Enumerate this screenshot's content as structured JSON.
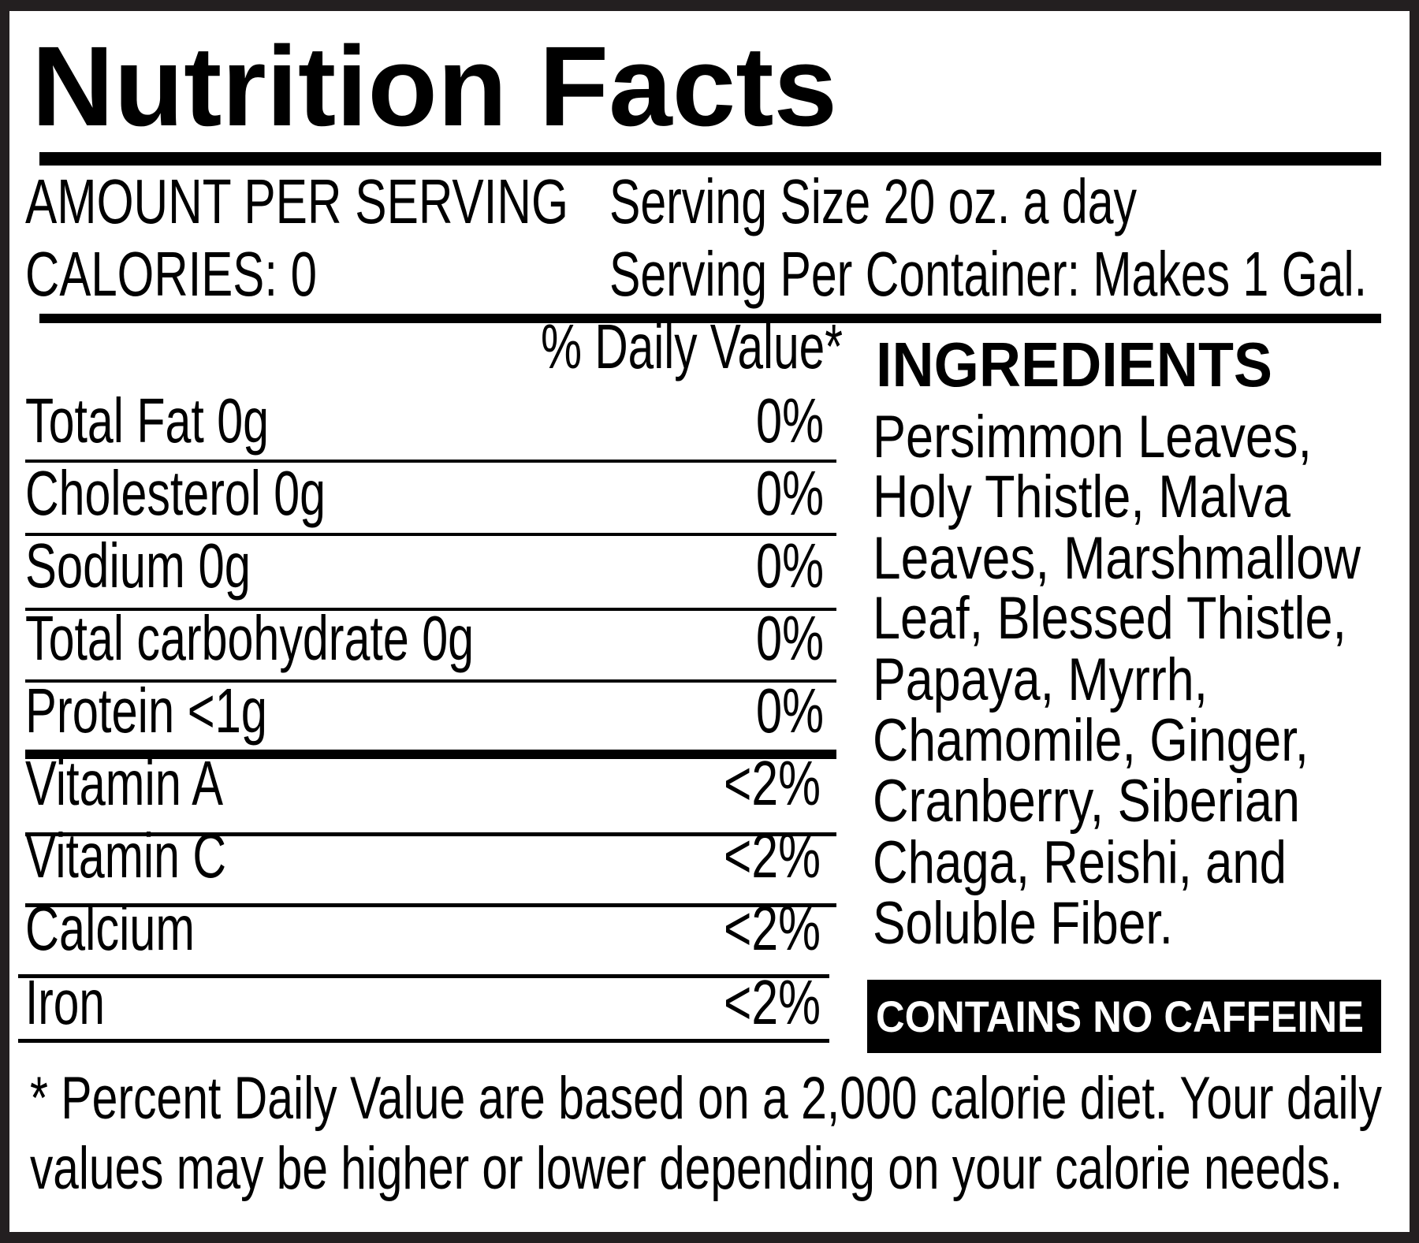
{
  "title": "Nutrition Facts",
  "serving": {
    "amount_label": "AMOUNT PER SERVING",
    "calories": "CALORIES: 0",
    "serving_size": "Serving Size 20 oz. a day",
    "servings_per_container": "Serving Per Container: Makes 1 Gal."
  },
  "daily_value_header": "% Daily Value*",
  "nutrients": [
    {
      "label": "Total Fat 0g",
      "dv": "0%"
    },
    {
      "label": "Cholesterol 0g",
      "dv": "0%"
    },
    {
      "label": "Sodium 0g",
      "dv": "0%"
    },
    {
      "label": "Total carbohydrate 0g",
      "dv": "0%"
    },
    {
      "label": "Protein <1g",
      "dv": "0%"
    },
    {
      "label": "Vitamin A",
      "dv": "<2%"
    },
    {
      "label": "Vitamin C",
      "dv": "<2%"
    },
    {
      "label": "Calcium",
      "dv": "<2%"
    },
    {
      "label": "Iron",
      "dv": "<2%"
    }
  ],
  "ingredients": {
    "heading": "INGREDIENTS",
    "lines": [
      "Persimmon Leaves,",
      "Holy Thistle, Malva",
      "Leaves, Marshmallow",
      "Leaf, Blessed Thistle,",
      "Papaya, Myrrh,",
      "Chamomile, Ginger,",
      "Cranberry, Siberian",
      "Chaga, Reishi, and",
      "Soluble Fiber."
    ]
  },
  "caffeine_badge": "CONTAINS NO CAFFEINE",
  "footnote": [
    "* Percent Daily Value are based on a 2,000 calorie diet. Your daily",
    "values may be higher or lower depending on your calorie needs."
  ],
  "colors": {
    "text": "#000000",
    "border": "#231f20",
    "badge_bg": "#000000",
    "badge_text": "#ffffff"
  }
}
